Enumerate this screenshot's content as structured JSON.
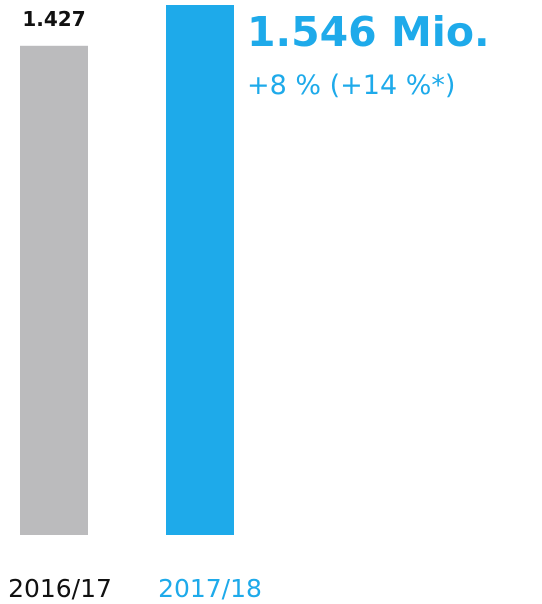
{
  "chart_data": {
    "type": "bar",
    "categories": [
      "2016/17",
      "2017/18"
    ],
    "values": [
      1427,
      1546
    ],
    "data_labels": [
      "1.427",
      ""
    ],
    "ylim": [
      0,
      1546
    ],
    "grid": false,
    "legend": "none",
    "colors": {
      "previous": "#bbbbbd",
      "current": "#1eaaea",
      "label_dark": "#111111",
      "label_accent": "#1eaaea"
    }
  },
  "headline": {
    "value": "1.546 Mio.",
    "change": "+8 % (+14 %*)"
  }
}
